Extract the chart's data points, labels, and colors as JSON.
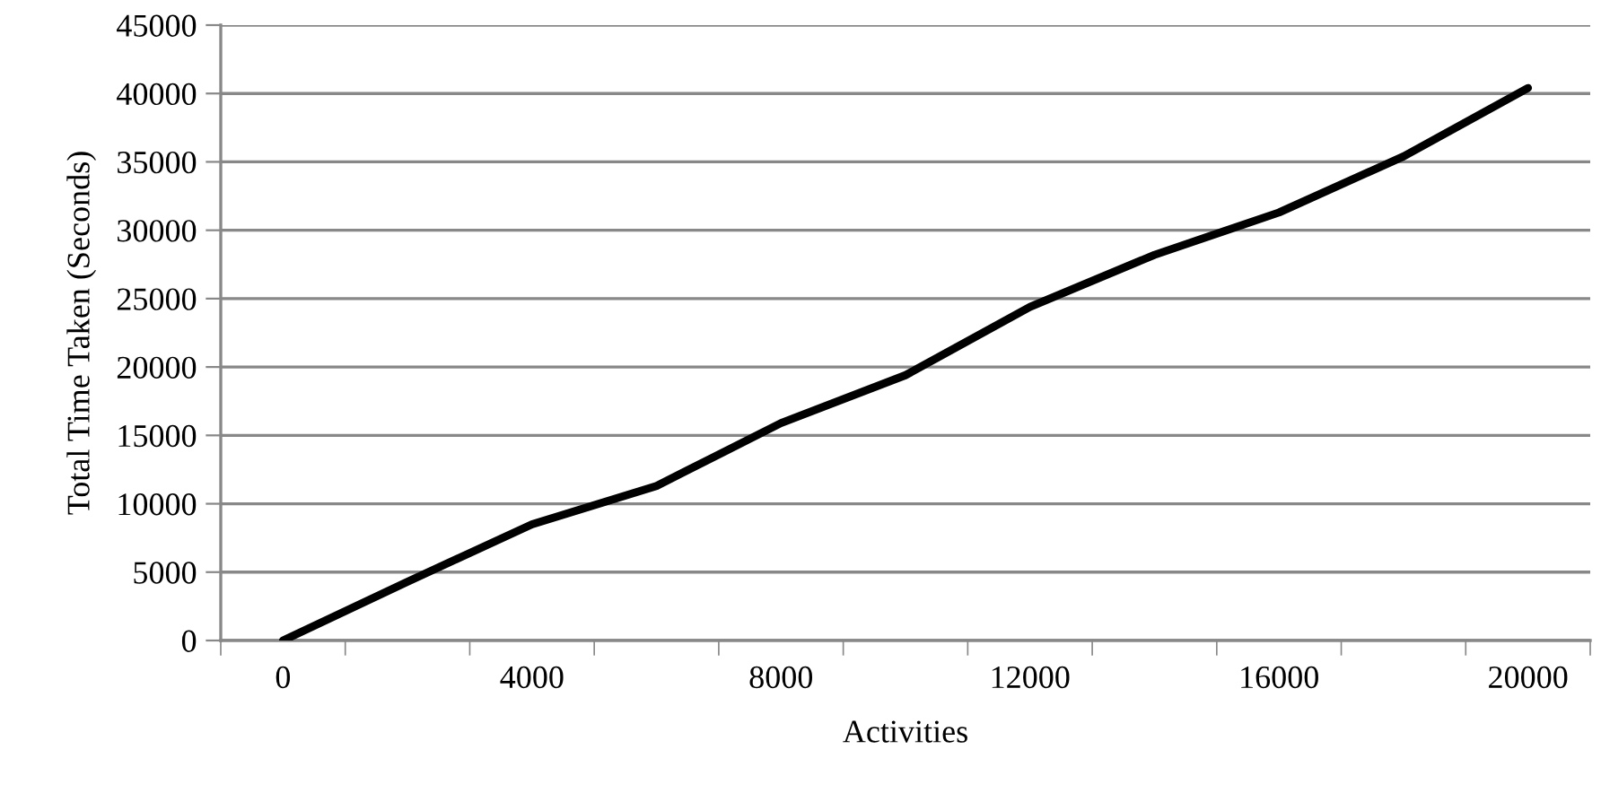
{
  "chart_data": {
    "type": "line",
    "xlabel": "Activities",
    "ylabel": "Total Time Taken (Seconds)",
    "categories": [
      "0",
      null,
      "4000",
      null,
      "8000",
      null,
      "12000",
      null,
      "16000",
      null,
      "20000"
    ],
    "series": [
      {
        "color": "#000000",
        "values": [
          0,
          4300,
          8500,
          11300,
          15900,
          19400,
          24400,
          28200,
          31300,
          35400,
          40400
        ]
      }
    ],
    "ylim": [
      0,
      45000
    ],
    "yticks": [
      0,
      5000,
      10000,
      15000,
      20000,
      25000,
      30000,
      35000,
      40000,
      45000
    ],
    "grid": "y",
    "marker": "none",
    "line_style": "solid"
  }
}
